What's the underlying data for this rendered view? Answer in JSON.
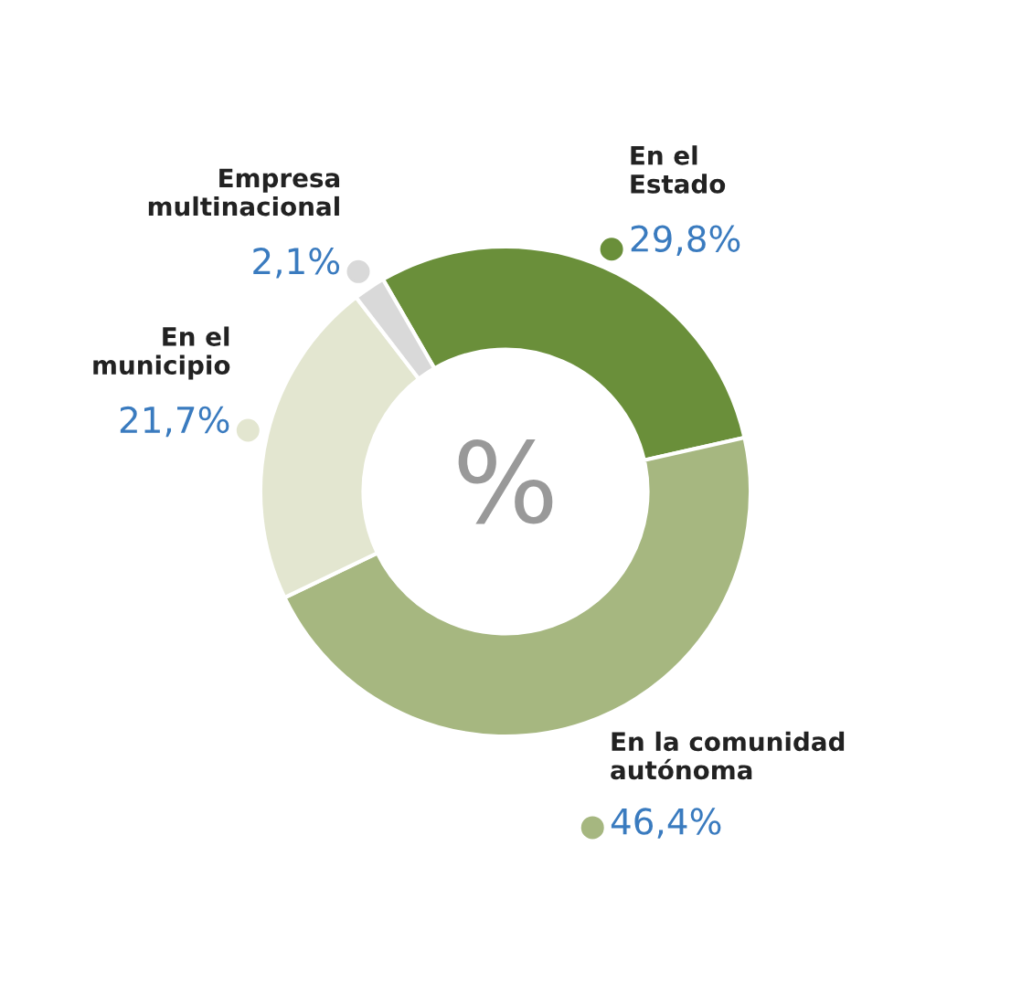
{
  "chart_data": {
    "type": "donut",
    "categories": [
      "En el\nEstado",
      "En la comunidad\nautónoma",
      "En el\nmunicipio",
      "Empresa\nmultinacional"
    ],
    "values": [
      29.8,
      46.4,
      21.7,
      2.1
    ],
    "value_labels": [
      "29,8%",
      "46,4%",
      "21,7%",
      "2,1%"
    ],
    "colors": [
      "#6a8f3a",
      "#a6b780",
      "#e3e6d0",
      "#d9d9d9"
    ],
    "annotations": [
      "%"
    ],
    "legend": false
  }
}
